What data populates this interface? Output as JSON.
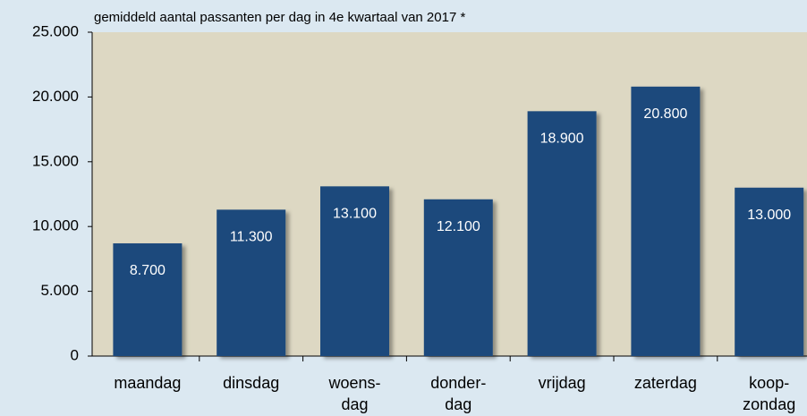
{
  "chart_data": {
    "type": "bar",
    "title": "gemiddeld aantal passanten per dag in 4e kwartaal van 2017 *",
    "categories": [
      "maandag",
      "dinsdag",
      "woens-\ndag",
      "donder-\ndag",
      "vrijdag",
      "zaterdag",
      "koop-\nzondag"
    ],
    "values": [
      8700,
      11300,
      13100,
      12100,
      18900,
      20800,
      13000
    ],
    "value_labels": [
      "8.700",
      "11.300",
      "13.100",
      "12.100",
      "18.900",
      "20.800",
      "13.000"
    ],
    "color": "#1f4a7c",
    "ylim": [
      0,
      25000
    ],
    "yticks": [
      0,
      {
        "value": 5000,
        "label": "5.000"
      },
      {
        "value": 10000,
        "label": "10.000"
      },
      {
        "value": 15000,
        "label": "15.000"
      },
      {
        "value": 20000,
        "label": "20.000"
      },
      {
        "value": 25000,
        "label": "25.000"
      }
    ],
    "grid": false
  }
}
